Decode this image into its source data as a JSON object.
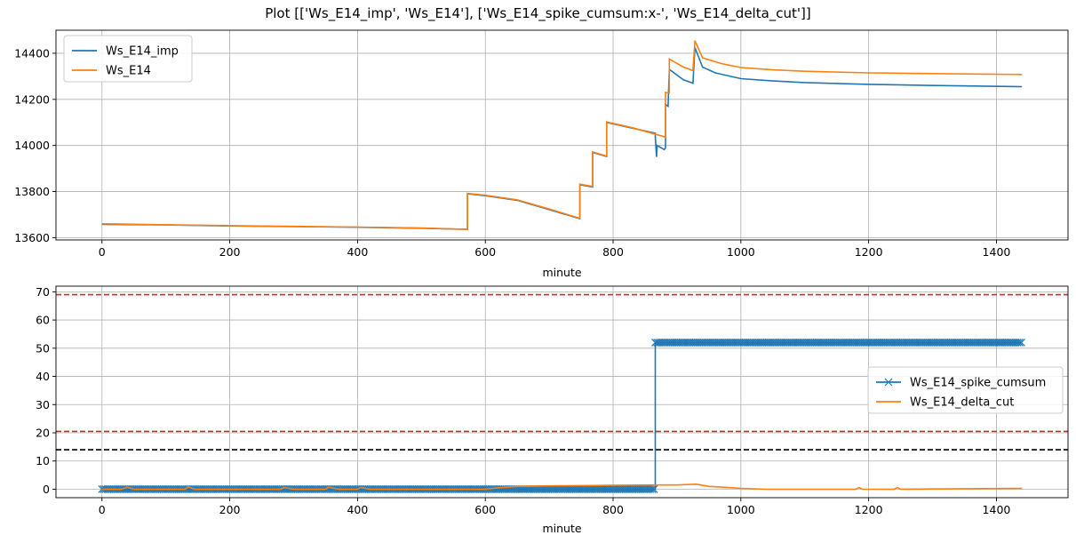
{
  "figure": {
    "title": "Plot [['Ws_E14_imp', 'Ws_E14'], ['Ws_E14_spike_cumsum:x-', 'Ws_E14_delta_cut']]"
  },
  "colors": {
    "blue": "#1f77b4",
    "orange": "#ff7f0e",
    "red_dash": "#d62728",
    "black_dash": "#000000",
    "grid": "#b0b0b0"
  },
  "chart_data": [
    {
      "type": "line",
      "xlabel": "minute",
      "ylabel": "",
      "xlim": [
        -72,
        1512
      ],
      "ylim": [
        13590,
        14500
      ],
      "x_ticks": [
        0,
        200,
        400,
        600,
        800,
        1000,
        1200,
        1400
      ],
      "y_ticks": [
        13600,
        13800,
        14000,
        14200,
        14400
      ],
      "grid": true,
      "legend_position": "upper-left",
      "series": [
        {
          "name": "Ws_E14_imp",
          "color": "blue",
          "points": [
            [
              0,
              13658
            ],
            [
              100,
              13655
            ],
            [
              200,
              13651
            ],
            [
              300,
              13648
            ],
            [
              400,
              13645
            ],
            [
              500,
              13641
            ],
            [
              572,
              13636
            ],
            [
              572,
              13790
            ],
            [
              600,
              13782
            ],
            [
              650,
              13762
            ],
            [
              700,
              13722
            ],
            [
              748,
              13682
            ],
            [
              748,
              13830
            ],
            [
              768,
              13820
            ],
            [
              768,
              13970
            ],
            [
              790,
              13952
            ],
            [
              790,
              14100
            ],
            [
              830,
              14075
            ],
            [
              866,
              14053
            ],
            [
              866,
              14040
            ],
            [
              868,
              13950
            ],
            [
              869,
              14000
            ],
            [
              880,
              13982
            ],
            [
              882,
              13990
            ],
            [
              882,
              14178
            ],
            [
              886,
              14170
            ],
            [
              888,
              14330
            ],
            [
              910,
              14285
            ],
            [
              925,
              14270
            ],
            [
              928,
              14425
            ],
            [
              940,
              14340
            ],
            [
              960,
              14315
            ],
            [
              1000,
              14290
            ],
            [
              1050,
              14280
            ],
            [
              1100,
              14273
            ],
            [
              1200,
              14265
            ],
            [
              1300,
              14260
            ],
            [
              1440,
              14255
            ]
          ]
        },
        {
          "name": "Ws_E14",
          "color": "orange",
          "points": [
            [
              0,
              13660
            ],
            [
              100,
              13656
            ],
            [
              200,
              13652
            ],
            [
              300,
              13649
            ],
            [
              400,
              13646
            ],
            [
              500,
              13642
            ],
            [
              572,
              13636
            ],
            [
              572,
              13792
            ],
            [
              600,
              13784
            ],
            [
              650,
              13764
            ],
            [
              700,
              13724
            ],
            [
              748,
              13684
            ],
            [
              748,
              13832
            ],
            [
              768,
              13822
            ],
            [
              768,
              13972
            ],
            [
              790,
              13954
            ],
            [
              790,
              14102
            ],
            [
              830,
              14077
            ],
            [
              880,
              14038
            ],
            [
              882,
              14035
            ],
            [
              882,
              14230
            ],
            [
              888,
              14228
            ],
            [
              888,
              14375
            ],
            [
              910,
              14340
            ],
            [
              925,
              14325
            ],
            [
              928,
              14455
            ],
            [
              940,
              14380
            ],
            [
              970,
              14355
            ],
            [
              1000,
              14338
            ],
            [
              1050,
              14328
            ],
            [
              1100,
              14322
            ],
            [
              1200,
              14315
            ],
            [
              1300,
              14312
            ],
            [
              1440,
              14308
            ]
          ]
        }
      ]
    },
    {
      "type": "line",
      "xlabel": "minute",
      "ylabel": "",
      "xlim": [
        -72,
        1512
      ],
      "ylim": [
        -3,
        72
      ],
      "x_ticks": [
        0,
        200,
        400,
        600,
        800,
        1000,
        1200,
        1400
      ],
      "y_ticks": [
        0,
        10,
        20,
        30,
        40,
        50,
        60,
        70
      ],
      "grid": true,
      "legend_position": "center-right",
      "series": [
        {
          "name": "Ws_E14_spike_cumsum",
          "color": "blue",
          "marker": "x",
          "values_description_steps": [
            [
              0,
              0
            ],
            [
              866,
              0
            ],
            [
              866,
              52
            ],
            [
              1440,
              52
            ]
          ]
        },
        {
          "name": "Ws_E14_delta_cut",
          "color": "orange",
          "points": [
            [
              0,
              0
            ],
            [
              30,
              0
            ],
            [
              40,
              0.7
            ],
            [
              50,
              0
            ],
            [
              130,
              0
            ],
            [
              135,
              0.8
            ],
            [
              145,
              0
            ],
            [
              280,
              0
            ],
            [
              285,
              0.6
            ],
            [
              300,
              0
            ],
            [
              350,
              0
            ],
            [
              355,
              0.7
            ],
            [
              370,
              0
            ],
            [
              400,
              0
            ],
            [
              405,
              0.6
            ],
            [
              420,
              0
            ],
            [
              600,
              0
            ],
            [
              620,
              0.5
            ],
            [
              650,
              1.0
            ],
            [
              700,
              1.2
            ],
            [
              750,
              1.3
            ],
            [
              800,
              1.4
            ],
            [
              866,
              1.5
            ],
            [
              900,
              1.5
            ],
            [
              930,
              1.8
            ],
            [
              950,
              1.0
            ],
            [
              980,
              0.6
            ],
            [
              1000,
              0.3
            ],
            [
              1040,
              0
            ],
            [
              1180,
              0
            ],
            [
              1185,
              0.6
            ],
            [
              1190,
              0
            ],
            [
              1240,
              0
            ],
            [
              1245,
              0.6
            ],
            [
              1250,
              0
            ],
            [
              1440,
              0.3
            ]
          ]
        }
      ],
      "hlines": [
        {
          "y": 69,
          "color": "red_dash"
        },
        {
          "y": 20.5,
          "color": "red_dash"
        },
        {
          "y": 14,
          "color": "black_dash"
        }
      ]
    }
  ]
}
